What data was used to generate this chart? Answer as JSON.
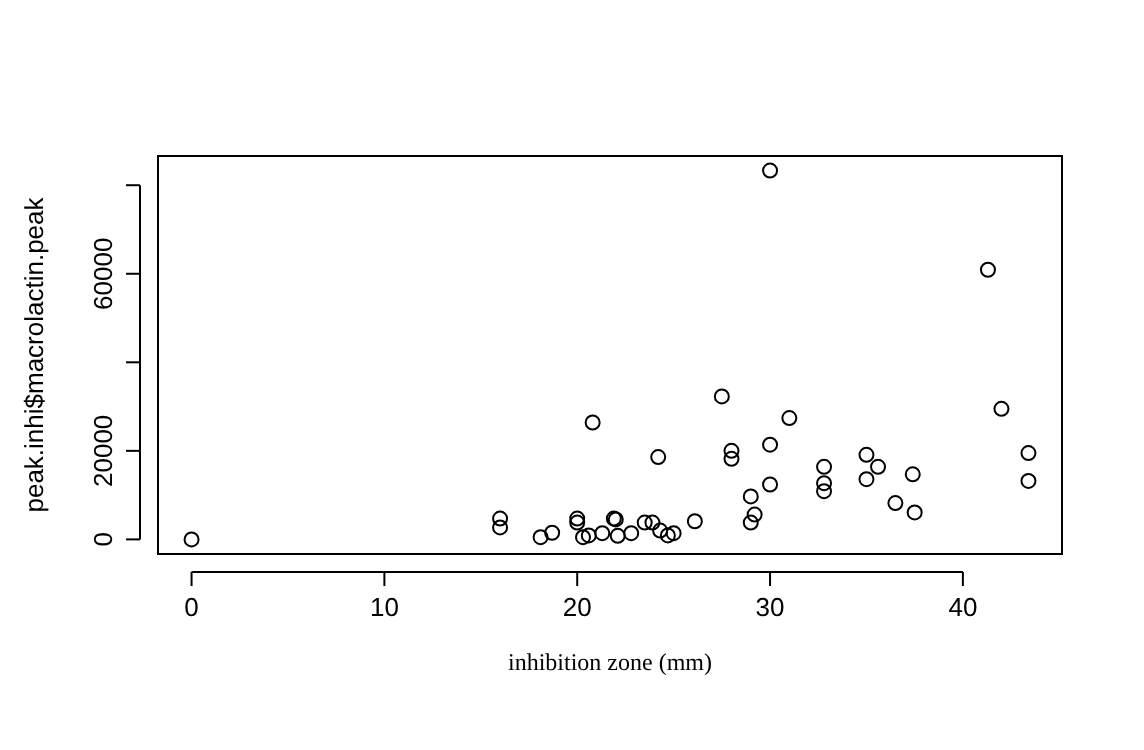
{
  "chart_data": {
    "type": "scatter",
    "xlabel": "inhibition zone (mm)",
    "ylabel": "peak.inhi$macrolactin.peak",
    "x": [
      0,
      16,
      16,
      18.1,
      18.7,
      20,
      20,
      20.3,
      20.6,
      20.8,
      21.3,
      21.9,
      22,
      22.1,
      22.8,
      23.5,
      23.9,
      24.2,
      24.3,
      24.7,
      25,
      26.1,
      27.5,
      28,
      28,
      29,
      29.2,
      29,
      30,
      30,
      30,
      31,
      32.8,
      32.8,
      32.8,
      35,
      35,
      35.6,
      36.5,
      37.4,
      37.5,
      41.3,
      42,
      43.4,
      43.4
    ],
    "values": [
      0,
      4700,
      2700,
      500,
      1500,
      4700,
      3800,
      500,
      900,
      26400,
      1400,
      4700,
      4500,
      800,
      1400,
      3800,
      3800,
      18600,
      2000,
      900,
      1400,
      4100,
      32300,
      20000,
      18200,
      9700,
      5600,
      3800,
      83300,
      21400,
      12400,
      27400,
      16400,
      12700,
      10900,
      19100,
      13600,
      16400,
      8200,
      14700,
      6100,
      60900,
      29500,
      19500,
      13200
    ],
    "color": "#000000",
    "marker": "circle",
    "legend": false,
    "xlim": [
      -1.74,
      45.14
    ],
    "xticks": [
      0,
      10,
      20,
      30,
      40
    ],
    "ylim": [
      -3300,
      86600
    ],
    "yticks": [
      0,
      20000,
      {
        "value": 40000,
        "label": null
      },
      60000,
      {
        "value": 80000,
        "label": null
      }
    ]
  }
}
